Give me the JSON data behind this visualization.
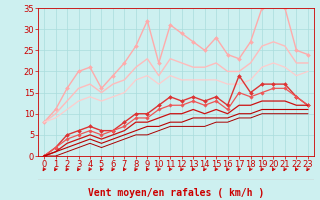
{
  "xlabel": "Vent moyen/en rafales ( km/h )",
  "xlim": [
    -0.5,
    23.5
  ],
  "ylim": [
    0,
    35
  ],
  "xticks": [
    0,
    1,
    2,
    3,
    4,
    5,
    6,
    7,
    8,
    9,
    10,
    11,
    12,
    13,
    14,
    15,
    16,
    17,
    18,
    19,
    20,
    21,
    22,
    23
  ],
  "yticks": [
    0,
    5,
    10,
    15,
    20,
    25,
    30,
    35
  ],
  "bg_color": "#cdf0f0",
  "grid_color": "#aadddd",
  "series": [
    {
      "color": "#ffaaaa",
      "linewidth": 1.0,
      "marker": "D",
      "markersize": 2.0,
      "x": [
        0,
        1,
        2,
        3,
        4,
        5,
        6,
        7,
        8,
        9,
        10,
        11,
        12,
        13,
        14,
        15,
        16,
        17,
        18,
        19,
        20,
        21,
        22,
        23
      ],
      "y": [
        8,
        11,
        16,
        20,
        21,
        16,
        19,
        22,
        26,
        32,
        22,
        31,
        29,
        27,
        25,
        28,
        24,
        23,
        27,
        35,
        36,
        35,
        25,
        24
      ]
    },
    {
      "color": "#ffbbbb",
      "linewidth": 1.0,
      "marker": null,
      "markersize": 0,
      "x": [
        0,
        1,
        2,
        3,
        4,
        5,
        6,
        7,
        8,
        9,
        10,
        11,
        12,
        13,
        14,
        15,
        16,
        17,
        18,
        19,
        20,
        21,
        22,
        23
      ],
      "y": [
        8,
        10,
        13,
        16,
        17,
        15,
        17,
        18,
        21,
        23,
        19,
        23,
        22,
        21,
        21,
        22,
        20,
        20,
        22,
        26,
        27,
        26,
        22,
        22
      ]
    },
    {
      "color": "#ffcccc",
      "linewidth": 0.9,
      "marker": null,
      "markersize": 0,
      "x": [
        0,
        1,
        2,
        3,
        4,
        5,
        6,
        7,
        8,
        9,
        10,
        11,
        12,
        13,
        14,
        15,
        16,
        17,
        18,
        19,
        20,
        21,
        22,
        23
      ],
      "y": [
        8,
        9,
        11,
        13,
        14,
        13,
        14,
        15,
        18,
        19,
        17,
        19,
        18,
        18,
        18,
        18,
        17,
        17,
        18,
        21,
        22,
        21,
        19,
        20
      ]
    },
    {
      "color": "#dd3333",
      "linewidth": 1.0,
      "marker": "D",
      "markersize": 2.0,
      "x": [
        0,
        1,
        2,
        3,
        4,
        5,
        6,
        7,
        8,
        9,
        10,
        11,
        12,
        13,
        14,
        15,
        16,
        17,
        18,
        19,
        20,
        21,
        22,
        23
      ],
      "y": [
        0,
        2,
        5,
        6,
        7,
        6,
        6,
        8,
        10,
        10,
        12,
        14,
        13,
        14,
        13,
        14,
        12,
        19,
        15,
        17,
        17,
        17,
        14,
        12
      ]
    },
    {
      "color": "#ee5555",
      "linewidth": 0.9,
      "marker": "D",
      "markersize": 1.8,
      "x": [
        0,
        1,
        2,
        3,
        4,
        5,
        6,
        7,
        8,
        9,
        10,
        11,
        12,
        13,
        14,
        15,
        16,
        17,
        18,
        19,
        20,
        21,
        22,
        23
      ],
      "y": [
        0,
        2,
        4,
        5,
        6,
        5,
        6,
        7,
        9,
        9,
        11,
        12,
        12,
        13,
        12,
        13,
        11,
        15,
        14,
        15,
        16,
        16,
        14,
        12
      ]
    },
    {
      "color": "#cc1111",
      "linewidth": 0.9,
      "marker": null,
      "markersize": 0,
      "x": [
        0,
        1,
        2,
        3,
        4,
        5,
        6,
        7,
        8,
        9,
        10,
        11,
        12,
        13,
        14,
        15,
        16,
        17,
        18,
        19,
        20,
        21,
        22,
        23
      ],
      "y": [
        0,
        1,
        3,
        4,
        5,
        4,
        5,
        6,
        8,
        8,
        9,
        10,
        10,
        11,
        10,
        11,
        10,
        12,
        12,
        13,
        13,
        13,
        12,
        12
      ]
    },
    {
      "color": "#bb0000",
      "linewidth": 0.8,
      "marker": null,
      "markersize": 0,
      "x": [
        0,
        1,
        2,
        3,
        4,
        5,
        6,
        7,
        8,
        9,
        10,
        11,
        12,
        13,
        14,
        15,
        16,
        17,
        18,
        19,
        20,
        21,
        22,
        23
      ],
      "y": [
        0,
        1,
        2,
        3,
        4,
        3,
        4,
        5,
        6,
        7,
        7,
        8,
        8,
        9,
        9,
        9,
        9,
        10,
        10,
        11,
        11,
        11,
        11,
        11
      ]
    },
    {
      "color": "#aa0000",
      "linewidth": 0.7,
      "marker": null,
      "markersize": 0,
      "x": [
        0,
        1,
        2,
        3,
        4,
        5,
        6,
        7,
        8,
        9,
        10,
        11,
        12,
        13,
        14,
        15,
        16,
        17,
        18,
        19,
        20,
        21,
        22,
        23
      ],
      "y": [
        0,
        0,
        1,
        2,
        3,
        2,
        3,
        4,
        5,
        5,
        6,
        7,
        7,
        7,
        7,
        8,
        8,
        9,
        9,
        10,
        10,
        10,
        10,
        10
      ]
    }
  ],
  "arrow_color": "#cc0000",
  "xlabel_color": "#cc0000",
  "xlabel_fontsize": 7,
  "tick_color": "#cc0000",
  "tick_fontsize": 6
}
